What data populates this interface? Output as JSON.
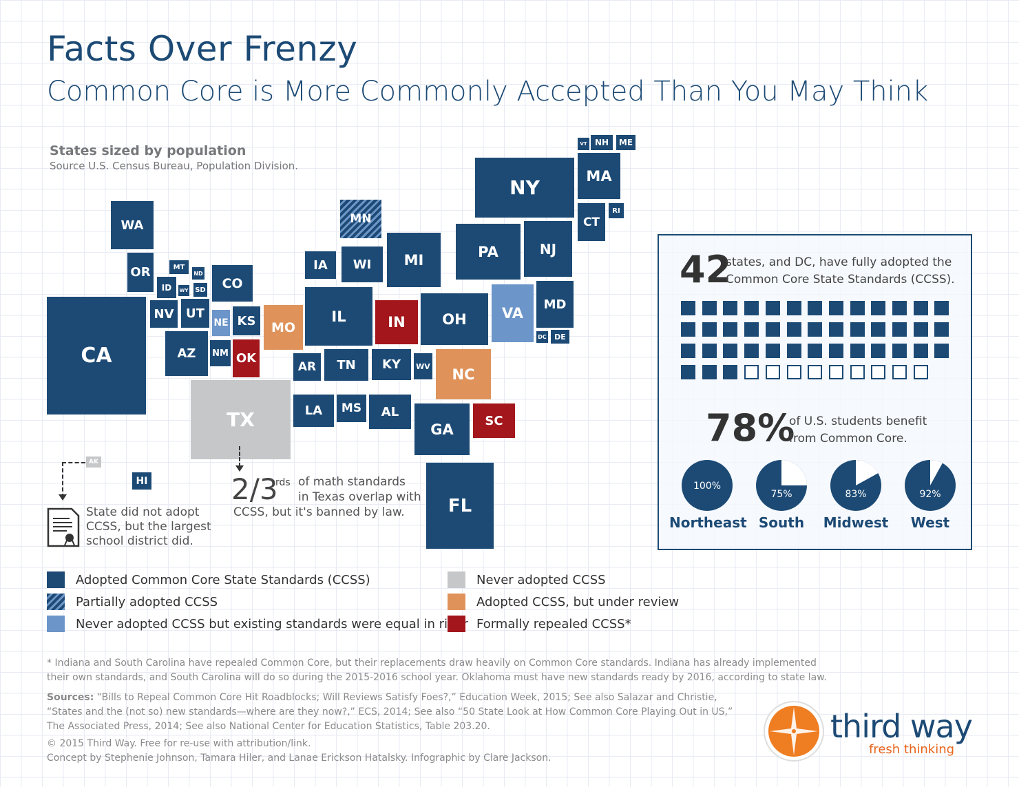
{
  "header": {
    "title": "Facts Over Frenzy",
    "subtitle": "Common Core is More Commonly Accepted Than You May Think"
  },
  "map_note": {
    "title": "States sized by population",
    "source": "Source U.S. Census Bureau, Population Division."
  },
  "colors": {
    "adopted": "#1c4a75",
    "partial": "hatched",
    "equal_rigor": "#6c95c9",
    "never": "#c6c7c9",
    "review": "#df935b",
    "repealed": "#a3161b"
  },
  "states": [
    {
      "abbr": "WA",
      "status": "adopted"
    },
    {
      "abbr": "OR",
      "status": "adopted"
    },
    {
      "abbr": "MT",
      "status": "adopted"
    },
    {
      "abbr": "ND",
      "status": "adopted"
    },
    {
      "abbr": "ID",
      "status": "adopted"
    },
    {
      "abbr": "WY",
      "status": "adopted"
    },
    {
      "abbr": "SD",
      "status": "adopted"
    },
    {
      "abbr": "CO",
      "status": "adopted"
    },
    {
      "abbr": "CA",
      "status": "adopted"
    },
    {
      "abbr": "NV",
      "status": "adopted"
    },
    {
      "abbr": "UT",
      "status": "adopted"
    },
    {
      "abbr": "NE",
      "status": "equal_rigor"
    },
    {
      "abbr": "KS",
      "status": "adopted"
    },
    {
      "abbr": "MO",
      "status": "review"
    },
    {
      "abbr": "AZ",
      "status": "adopted"
    },
    {
      "abbr": "NM",
      "status": "adopted"
    },
    {
      "abbr": "OK",
      "status": "repealed"
    },
    {
      "abbr": "TX",
      "status": "never"
    },
    {
      "abbr": "MN",
      "status": "partial"
    },
    {
      "abbr": "IA",
      "status": "adopted"
    },
    {
      "abbr": "WI",
      "status": "adopted"
    },
    {
      "abbr": "MI",
      "status": "adopted"
    },
    {
      "abbr": "IL",
      "status": "adopted"
    },
    {
      "abbr": "IN",
      "status": "repealed"
    },
    {
      "abbr": "OH",
      "status": "adopted"
    },
    {
      "abbr": "AR",
      "status": "adopted"
    },
    {
      "abbr": "TN",
      "status": "adopted"
    },
    {
      "abbr": "KY",
      "status": "adopted"
    },
    {
      "abbr": "WV",
      "status": "adopted"
    },
    {
      "abbr": "NC",
      "status": "review"
    },
    {
      "abbr": "LA",
      "status": "adopted"
    },
    {
      "abbr": "MS",
      "status": "adopted"
    },
    {
      "abbr": "AL",
      "status": "adopted"
    },
    {
      "abbr": "GA",
      "status": "adopted"
    },
    {
      "abbr": "SC",
      "status": "repealed"
    },
    {
      "abbr": "FL",
      "status": "adopted"
    },
    {
      "abbr": "NY",
      "status": "adopted"
    },
    {
      "abbr": "PA",
      "status": "adopted"
    },
    {
      "abbr": "NJ",
      "status": "adopted"
    },
    {
      "abbr": "VA",
      "status": "equal_rigor"
    },
    {
      "abbr": "MD",
      "status": "adopted"
    },
    {
      "abbr": "DC",
      "status": "adopted"
    },
    {
      "abbr": "DE",
      "status": "adopted"
    },
    {
      "abbr": "VT",
      "status": "adopted"
    },
    {
      "abbr": "NH",
      "status": "adopted"
    },
    {
      "abbr": "ME",
      "status": "adopted"
    },
    {
      "abbr": "MA",
      "status": "adopted"
    },
    {
      "abbr": "CT",
      "status": "adopted"
    },
    {
      "abbr": "RI",
      "status": "adopted"
    },
    {
      "abbr": "AK",
      "status": "never"
    },
    {
      "abbr": "HI",
      "status": "adopted"
    }
  ],
  "annotations": {
    "ak_note": "State did not adopt CCSS, but the largest school district did.",
    "tx_big": "2/3",
    "tx_sup": "rds",
    "tx_line1": "of math standards",
    "tx_line2": "in Texas overlap with",
    "tx_line3": "CCSS, but it's banned by law."
  },
  "legend": [
    {
      "key": "adopted",
      "label": "Adopted Common Core State Standards (CCSS)"
    },
    {
      "key": "partial",
      "label": "Partially adopted CCSS"
    },
    {
      "key": "equal_rigor",
      "label": "Never adopted CCSS but existing standards were equal in rigor"
    },
    {
      "key": "never",
      "label": "Never adopted CCSS"
    },
    {
      "key": "review",
      "label": "Adopted CCSS, but under review"
    },
    {
      "key": "repealed",
      "label": "Formally repealed CCSS*"
    }
  ],
  "panel": {
    "big1": "42",
    "text1a": "states, and DC, have fully adopted the",
    "text1b": "Common Core State Standards (CCSS).",
    "filled": 42,
    "total": 51,
    "big2": "78%",
    "text2a": "of U.S. students benefit",
    "text2b": "from Common Core.",
    "regions": [
      {
        "name": "Northeast",
        "pct": 100,
        "label": "100%"
      },
      {
        "name": "South",
        "pct": 75,
        "label": "75%"
      },
      {
        "name": "Midwest",
        "pct": 83,
        "label": "83%"
      },
      {
        "name": "West",
        "pct": 92,
        "label": "92%"
      }
    ]
  },
  "footer": {
    "note1": "* Indiana and South Carolina have repealed Common Core, but their replacements draw heavily on Common Core standards. Indiana has already implemented",
    "note2": "their own standards, and South Carolina will do so during the 2015-2016 school year. Oklahoma must have new standards ready by 2016, according to state law.",
    "sources_label": "Sources:",
    "src1": " “Bills to Repeal Common Core Hit Roadblocks; Will Reviews Satisfy Foes?,” Education Week, 2015; See also Salazar and Christie,",
    "src2": "“States and the (not so) new standards—where are they now?,” ECS, 2014; See also “50 State Look at How Common Core Playing Out in US,”",
    "src3": "The Associated Press, 2014; See also National Center for Education Statistics, Table 203.20.",
    "copyright": "© 2015 Third Way. Free for re-use with attribution/link.",
    "credits": "Concept by Stephenie Johnson, Tamara Hiler, and Lanae Erickson Hatalsky. Infographic by Clare Jackson."
  },
  "logo": {
    "name": "third way",
    "tagline": "fresh thinking"
  }
}
